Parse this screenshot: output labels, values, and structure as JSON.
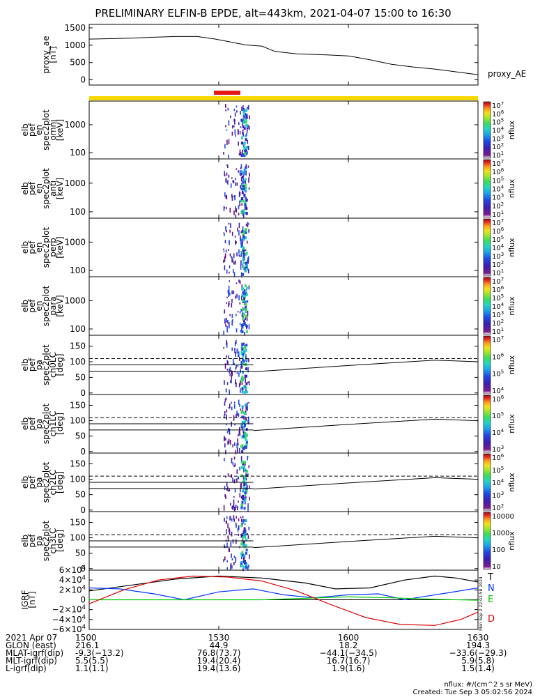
{
  "title": "PRELIMINARY ELFIN-B EPDE, alt=443km, 2021-04-07 15:00 to 16:30",
  "colors": {
    "spec_scale": [
      "#ffffff",
      "#6a0d83",
      "#3b1fb0",
      "#1f48e6",
      "#1ea3e8",
      "#22d6c2",
      "#3ddc5a",
      "#a7e52b",
      "#f2e11c",
      "#f89b1c",
      "#e52421",
      "#9b0f16"
    ],
    "text": "#000000",
    "bx": "#000000",
    "by": "#0033ff",
    "bz": "#00cc00",
    "bt": "#dd0000",
    "science_bar": "#f5d800",
    "zone_bar": "#e51b1b"
  },
  "chart_data": {
    "type": "line",
    "x_range": [
      "15:00",
      "16:30"
    ],
    "panels": [
      {
        "id": "proxy_ae",
        "ylabel": [
          "proxy_ae",
          "[nT]"
        ],
        "yticks": [
          "1500",
          "1000",
          "500",
          "0"
        ],
        "ylim": [
          -150,
          1600
        ],
        "trace_label": "proxy_AE",
        "x": [
          "15:00",
          "15:09",
          "15:15",
          "15:20",
          "15:25",
          "15:29",
          "15:32",
          "15:36",
          "15:38",
          "15:40",
          "15:43",
          "15:48",
          "15:55",
          "16:00",
          "16:05",
          "16:10",
          "16:15",
          "16:20",
          "16:25",
          "16:30"
        ],
        "y": [
          1175,
          1200,
          1230,
          1250,
          1250,
          1180,
          1110,
          1010,
          990,
          970,
          820,
          750,
          720,
          690,
          580,
          450,
          370,
          310,
          230,
          150
        ]
      },
      {
        "id": "omni",
        "ylabel": [
          "elb",
          "pef",
          "en",
          "spec2plot",
          "omni",
          "[keV]"
        ],
        "yticks": [
          "1000",
          "100"
        ],
        "ylim": [
          60,
          7000
        ],
        "log": true,
        "cbar": {
          "label": "nflux",
          "ticks": [
            "10<sup>7</sup>",
            "10<sup>6</sup>",
            "10<sup>5</sup>",
            "10<sup>4</sup>",
            "10<sup>3</sup>",
            "10<sup>2</sup>",
            "10<sup>1</sup>"
          ],
          "extra": "10<sup>1</sup>"
        }
      },
      {
        "id": "anti",
        "ylabel": [
          "elb",
          "pef",
          "en",
          "spec2plot",
          "anti",
          "[keV]"
        ],
        "yticks": [
          "1000",
          "100"
        ],
        "ylim": [
          60,
          7000
        ],
        "log": true,
        "cbar": {
          "label": "nflux",
          "ticks": [
            "10<sup>7</sup>",
            "10<sup>6</sup>",
            "10<sup>5</sup>",
            "10<sup>4</sup>",
            "10<sup>3</sup>",
            "10<sup>2</sup>",
            "10<sup>1</sup>"
          ],
          "extra": "10<sup>1</sup>"
        }
      },
      {
        "id": "perp",
        "ylabel": [
          "elb",
          "pef",
          "en",
          "spec2plot",
          "perp",
          "[keV]"
        ],
        "yticks": [
          "1000",
          "100"
        ],
        "ylim": [
          60,
          7000
        ],
        "log": true,
        "cbar": {
          "label": "nflux",
          "ticks": [
            "10<sup>7</sup>",
            "10<sup>6</sup>",
            "10<sup>5</sup>",
            "10<sup>4</sup>",
            "10<sup>3</sup>",
            "10<sup>2</sup>",
            "10<sup>1</sup>"
          ],
          "extra": "10<sup>1</sup>"
        }
      },
      {
        "id": "para",
        "ylabel": [
          "elb",
          "pef",
          "en",
          "spec2plot",
          "para",
          "[keV]"
        ],
        "yticks": [
          "1000",
          "100"
        ],
        "ylim": [
          60,
          7000
        ],
        "log": true,
        "cbar": {
          "label": "nflux",
          "ticks": [
            "10<sup>7</sup>",
            "10<sup>6</sup>",
            "10<sup>5</sup>",
            "10<sup>4</sup>",
            "10<sup>3</sup>",
            "10<sup>2</sup>",
            "10<sup>1</sup>"
          ],
          "extra": "10<sup>1</sup>"
        }
      },
      {
        "id": "ch0LC",
        "ylabel": [
          "elb",
          "pef",
          "pa",
          "spec2plot",
          "ch0LC",
          "[deg]"
        ],
        "yticks": [
          "150",
          "100",
          "50",
          "0"
        ],
        "ylim": [
          -5,
          185
        ],
        "cbar": {
          "label": "nflux",
          "ticks": [
            "10<sup>7</sup>",
            "10<sup>6</sup>",
            "10<sup>5</sup>",
            "10<sup>4</sup>"
          ]
        }
      },
      {
        "id": "ch1LC",
        "ylabel": [
          "elb",
          "pef",
          "pa",
          "spec2plot",
          "ch1LC",
          "[deg]"
        ],
        "yticks": [
          "150",
          "100",
          "50",
          "0"
        ],
        "ylim": [
          -5,
          185
        ],
        "cbar": {
          "label": "nflux",
          "ticks": [
            "10<sup>6</sup>",
            "10<sup>5</sup>",
            "10<sup>4</sup>",
            "10<sup>3</sup>"
          ]
        }
      },
      {
        "id": "ch2LC",
        "ylabel": [
          "elb",
          "pef",
          "pa",
          "spec2plot",
          "ch2LC",
          "[deg]"
        ],
        "yticks": [
          "150",
          "100",
          "50",
          "0"
        ],
        "ylim": [
          -5,
          185
        ],
        "cbar": {
          "label": "nflux",
          "ticks": [
            "10<sup>6</sup>",
            "10<sup>5</sup>",
            "10<sup>4</sup>",
            "10<sup>3</sup>",
            "10<sup>2</sup>"
          ]
        }
      },
      {
        "id": "ch3LC",
        "ylabel": [
          "elb",
          "pef",
          "pa",
          "spec2plot",
          "ch3LC",
          "[deg]"
        ],
        "yticks": [
          "150",
          "100",
          "50",
          "0"
        ],
        "ylim": [
          -5,
          185
        ],
        "cbar": {
          "label": "nflux",
          "ticks": [
            "10000",
            "1000",
            "100",
            "10"
          ]
        }
      },
      {
        "id": "igrf",
        "ylabel": [
          "IGRF",
          "[nT]"
        ],
        "yticks": [
          "6×10<sup>4</sup>",
          "4×10<sup>4</sup>",
          "2×10<sup>4</sup>",
          "0",
          "−2×10<sup>4</sup>",
          "−4×10<sup>4</sup>",
          "−6×10<sup>4</sup>"
        ],
        "ylim": [
          -60000,
          60000
        ],
        "legend": [
          "T",
          "N",
          "E",
          "D"
        ],
        "series": [
          {
            "name": "T",
            "x": [
              "15:00",
              "15:10",
              "15:20",
              "15:30",
              "15:40",
              "15:50",
              "15:57",
              "16:05",
              "16:13",
              "16:20",
              "16:25",
              "16:30"
            ],
            "y": [
              18000,
              30000,
              42000,
              48000,
              44000,
              34000,
              22000,
              24000,
              40000,
              48000,
              44000,
              36000
            ]
          },
          {
            "name": "N",
            "x": [
              "15:00",
              "15:07",
              "15:15",
              "15:22",
              "15:30",
              "15:38",
              "15:45",
              "15:52",
              "16:00",
              "16:07",
              "16:13",
              "16:17",
              "16:23",
              "16:30"
            ],
            "y": [
              24000,
              22000,
              12000,
              0,
              16000,
              22000,
              10000,
              4000,
              10000,
              12000,
              0,
              6000,
              14000,
              24000
            ]
          },
          {
            "name": "E",
            "x": [
              "15:00",
              "15:20",
              "15:30",
              "15:40",
              "15:50",
              "16:00",
              "16:10",
              "16:20",
              "16:30"
            ],
            "y": [
              0,
              0,
              0,
              0,
              3000,
              6000,
              4000,
              1000,
              -1000
            ]
          },
          {
            "name": "D",
            "x": [
              "15:00",
              "15:08",
              "15:16",
              "15:24",
              "15:32",
              "15:40",
              "15:48",
              "15:56",
              "16:04",
              "16:12",
              "16:20",
              "16:26",
              "16:30"
            ],
            "y": [
              -8000,
              20000,
              40000,
              48000,
              46000,
              38000,
              18000,
              -10000,
              -36000,
              -50000,
              -52000,
              -40000,
              -25000
            ]
          }
        ]
      }
    ],
    "pa_lines": {
      "dashed": 110,
      "solid_upper": 90,
      "solid_lower": 70
    },
    "x_ticks": [
      "1500",
      "1530",
      "1600",
      "1630"
    ],
    "orbit_table": {
      "rows": [
        {
          "label": "2021 Apr 07",
          "values": [
            "1500",
            "1530",
            "1600",
            "1630"
          ]
        },
        {
          "label": "GLON (east)",
          "values": [
            "216.1",
            "44.9",
            "18.2",
            "194.3"
          ]
        },
        {
          "label": "MLAT-igrf(dip)",
          "values": [
            "-9.3(−13.2)",
            "76.8(73.7)",
            "−44.1(−34.5)",
            "−33.6(−29.3)"
          ]
        },
        {
          "label": "MLT-igrf(dip)",
          "values": [
            "5.5(5.5)",
            "19.4(20.4)",
            "16.7(16.7)",
            "5.9(5.8)"
          ]
        },
        {
          "label": "L-igrf(dip)",
          "values": [
            "1.1(1.1)",
            "19.4(13.6)",
            "1.9(1.6)",
            "1.5(1.4)"
          ]
        }
      ]
    },
    "footer": {
      "units": "nflux: #/(cm^2 s sr MeV)",
      "created": "Created: Tue Sep  3 05:02:56 2024"
    },
    "side_stamp": "Mon Sep  2 22:02:58 2024"
  }
}
